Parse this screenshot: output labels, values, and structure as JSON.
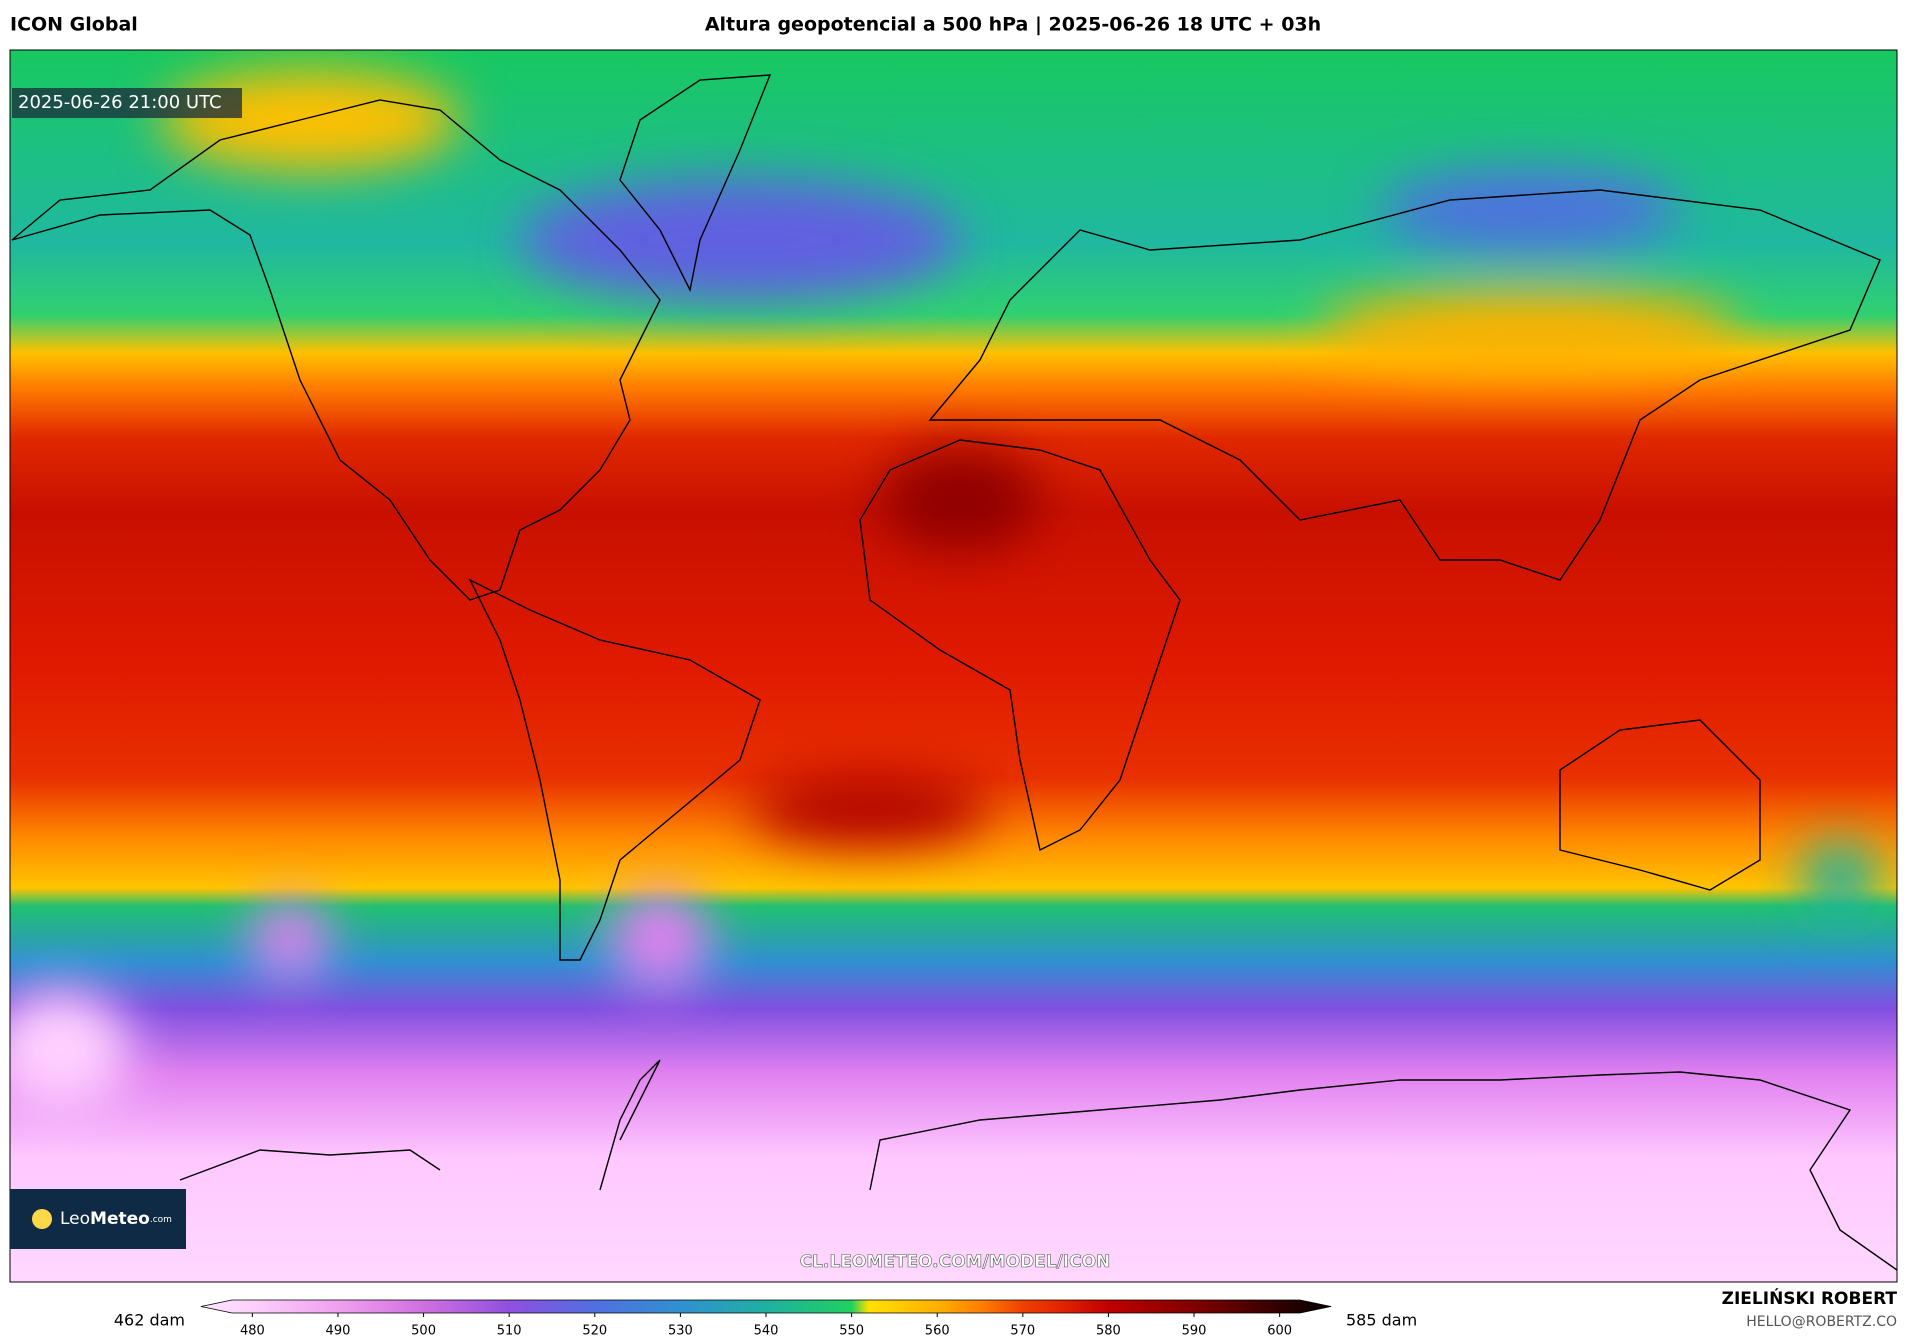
{
  "header": {
    "left": "ICON Global",
    "title": "Altura geopotencial a 500 hPa | 2025-06-26 18 UTC + 03h"
  },
  "timestamp": "2025-06-26 21:00 UTC",
  "watermark": "CL.LEOMETEO.COM/MODEL/ICON",
  "logo": {
    "leo": "Leo",
    "meteo": "Meteo",
    "suffix": ".com"
  },
  "colorbar": {
    "min_label": "462 dam",
    "max_label": "585 dam",
    "lim": [
      474,
      606
    ],
    "ticks": [
      480,
      490,
      500,
      510,
      520,
      530,
      540,
      550,
      560,
      570,
      580,
      590,
      600
    ],
    "stops": [
      {
        "value": 474,
        "color": "#ffe6ff"
      },
      {
        "value": 480,
        "color": "#fcd0fc"
      },
      {
        "value": 490,
        "color": "#f0a0f0"
      },
      {
        "value": 500,
        "color": "#d070e0"
      },
      {
        "value": 510,
        "color": "#9050e0"
      },
      {
        "value": 520,
        "color": "#5070e0"
      },
      {
        "value": 530,
        "color": "#3090d0"
      },
      {
        "value": 540,
        "color": "#20b0a0"
      },
      {
        "value": 550,
        "color": "#20d060"
      },
      {
        "value": 552,
        "color": "#ffe000"
      },
      {
        "value": 560,
        "color": "#ffb000"
      },
      {
        "value": 565,
        "color": "#ff8000"
      },
      {
        "value": 570,
        "color": "#f04000"
      },
      {
        "value": 575,
        "color": "#e02000"
      },
      {
        "value": 580,
        "color": "#c00000"
      },
      {
        "value": 590,
        "color": "#800000"
      },
      {
        "value": 600,
        "color": "#300000"
      },
      {
        "value": 606,
        "color": "#000000"
      }
    ]
  },
  "author": {
    "name": "ZIELIŃSKI ROBERT",
    "email": "HELLO@ROBERTZ.CO"
  }
}
